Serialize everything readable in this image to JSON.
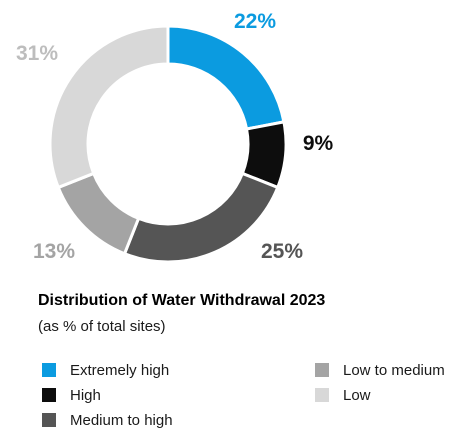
{
  "chart_data": {
    "type": "pie",
    "style": "donut",
    "title": "Distribution of Water Withdrawal 2023",
    "subtitle": "(as % of total sites)",
    "unit": "%",
    "legend_position": "bottom",
    "slices": [
      {
        "name": "Extremely high",
        "value": 22,
        "label": "22%",
        "color": "#0b9be0",
        "label_color": "#0b9be0"
      },
      {
        "name": "High",
        "value": 9,
        "label": "9%",
        "color": "#0d0d0d",
        "label_color": "#0d0d0d"
      },
      {
        "name": "Medium to high",
        "value": 25,
        "label": "25%",
        "color": "#555555",
        "label_color": "#555555"
      },
      {
        "name": "Low to medium",
        "value": 13,
        "label": "13%",
        "color": "#a4a4a4",
        "label_color": "#a4a4a4"
      },
      {
        "name": "Low",
        "value": 31,
        "label": "31%",
        "color": "#d8d8d8",
        "label_color": "#bdbdbd"
      }
    ]
  }
}
